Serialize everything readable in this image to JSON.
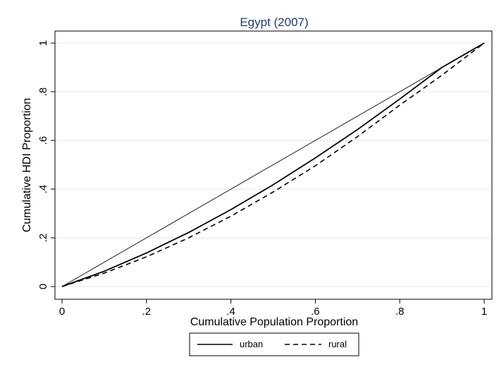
{
  "chart_data": {
    "type": "line",
    "title": "Egypt (2007)",
    "xlabel": "Cumulative Population Proportion",
    "ylabel": "Cumulative HDI Proportion",
    "xlim": [
      0,
      1
    ],
    "ylim": [
      0,
      1
    ],
    "x_ticks": [
      "0",
      ".2",
      ".4",
      ".6",
      ".8",
      "1"
    ],
    "y_ticks": [
      "0",
      ".2",
      ".4",
      ".6",
      ".8",
      "1"
    ],
    "grid": true,
    "legend_position": "bottom",
    "x": [
      0,
      0.1,
      0.2,
      0.3,
      0.4,
      0.5,
      0.6,
      0.7,
      0.8,
      0.9,
      1.0
    ],
    "series": [
      {
        "name": "",
        "style": "thin-solid",
        "values": [
          0,
          0.1,
          0.2,
          0.3,
          0.4,
          0.5,
          0.6,
          0.7,
          0.8,
          0.9,
          1.0
        ]
      },
      {
        "name": "urban",
        "style": "solid",
        "values": [
          0,
          0.063,
          0.138,
          0.222,
          0.316,
          0.418,
          0.528,
          0.645,
          0.77,
          0.9,
          1.0
        ]
      },
      {
        "name": "rural",
        "style": "dashed",
        "values": [
          0,
          0.055,
          0.122,
          0.2,
          0.289,
          0.388,
          0.496,
          0.616,
          0.745,
          0.868,
          1.0
        ]
      }
    ],
    "colors": {
      "title": "#1f3b73",
      "lines": "#000000",
      "grid": "#e6e6e6"
    }
  }
}
